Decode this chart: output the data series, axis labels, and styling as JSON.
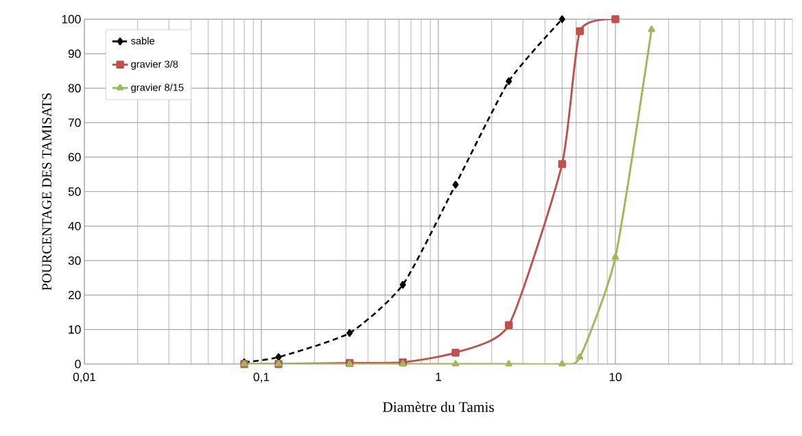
{
  "chart_data": {
    "type": "line",
    "xlabel": "Diamètre du Tamis",
    "ylabel": "POURCENTAGE DES TAMISATS",
    "x": [
      0.08,
      0.125,
      0.315,
      0.63,
      1.25,
      2.5,
      5,
      6.3,
      10,
      16
    ],
    "series": [
      {
        "name": "sable",
        "color": "#000000",
        "marker": "diamond",
        "line_style": "dashed",
        "values": [
          0.5,
          2,
          9,
          23,
          52,
          82,
          100,
          null,
          null,
          null
        ]
      },
      {
        "name": "gravier 3/8",
        "color": "#c0504d",
        "marker": "square",
        "line_style": "solid",
        "values": [
          0,
          0,
          0.3,
          0.5,
          3.3,
          11.3,
          58,
          96.5,
          100,
          null
        ]
      },
      {
        "name": "gravier 8/15",
        "color": "#9bbb59",
        "marker": "triangle",
        "line_style": "solid",
        "values": [
          0,
          0,
          0,
          0,
          0,
          0,
          0,
          2,
          31,
          97
        ]
      }
    ],
    "log": "x",
    "xlim": [
      0.01,
      100
    ],
    "ylim": [
      0,
      100
    ],
    "xticks": [
      {
        "value": 0.01,
        "label": "0,01"
      },
      {
        "value": 0.1,
        "label": "0,1"
      },
      {
        "value": 1,
        "label": "1"
      },
      {
        "value": 10,
        "label": "10"
      }
    ],
    "yticks": [
      0,
      10,
      20,
      30,
      40,
      50,
      60,
      70,
      80,
      90,
      100
    ],
    "grid": true,
    "legend": "top left"
  }
}
